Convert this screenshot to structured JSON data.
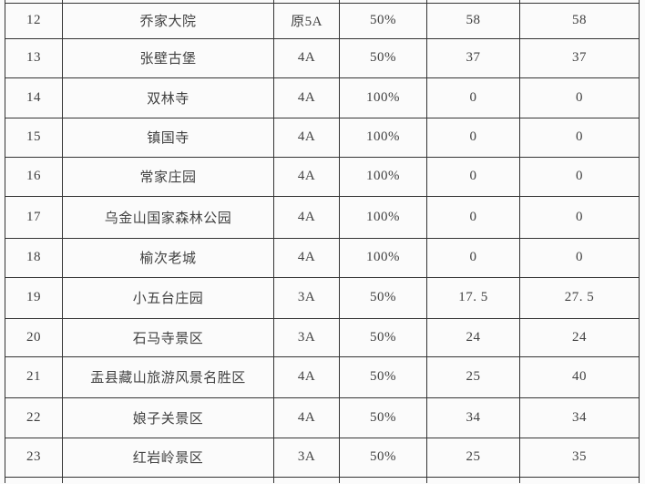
{
  "table": {
    "description_note": "",
    "column_keys": [
      "no",
      "name",
      "grade",
      "discount",
      "price_a",
      "price_b"
    ],
    "rows": [
      {
        "no": "12",
        "name": "乔家大院",
        "grade": "原5A",
        "discount": "50%",
        "price_a": "58",
        "price_b": "58"
      },
      {
        "no": "13",
        "name": "张壁古堡",
        "grade": "4A",
        "discount": "50%",
        "price_a": "37",
        "price_b": "37"
      },
      {
        "no": "14",
        "name": "双林寺",
        "grade": "4A",
        "discount": "100%",
        "price_a": "0",
        "price_b": "0"
      },
      {
        "no": "15",
        "name": "镇国寺",
        "grade": "4A",
        "discount": "100%",
        "price_a": "0",
        "price_b": "0"
      },
      {
        "no": "16",
        "name": "常家庄园",
        "grade": "4A",
        "discount": "100%",
        "price_a": "0",
        "price_b": "0"
      },
      {
        "no": "17",
        "name": "乌金山国家森林公园",
        "grade": "4A",
        "discount": "100%",
        "price_a": "0",
        "price_b": "0"
      },
      {
        "no": "18",
        "name": "榆次老城",
        "grade": "4A",
        "discount": "100%",
        "price_a": "0",
        "price_b": "0"
      },
      {
        "no": "19",
        "name": "小五台庄园",
        "grade": "3A",
        "discount": "50%",
        "price_a": "17. 5",
        "price_b": "27. 5"
      },
      {
        "no": "20",
        "name": "石马寺景区",
        "grade": "3A",
        "discount": "50%",
        "price_a": "24",
        "price_b": "24"
      },
      {
        "no": "21",
        "name": "盂县藏山旅游风景名胜区",
        "grade": "4A",
        "discount": "50%",
        "price_a": "25",
        "price_b": "40"
      },
      {
        "no": "22",
        "name": "娘子关景区",
        "grade": "4A",
        "discount": "50%",
        "price_a": "34",
        "price_b": "34"
      },
      {
        "no": "23",
        "name": "红岩岭景区",
        "grade": "3A",
        "discount": "50%",
        "price_a": "25",
        "price_b": "35"
      }
    ]
  },
  "colors": {
    "border": "#343434",
    "text": "#414141",
    "background": "#fbfbfb"
  }
}
